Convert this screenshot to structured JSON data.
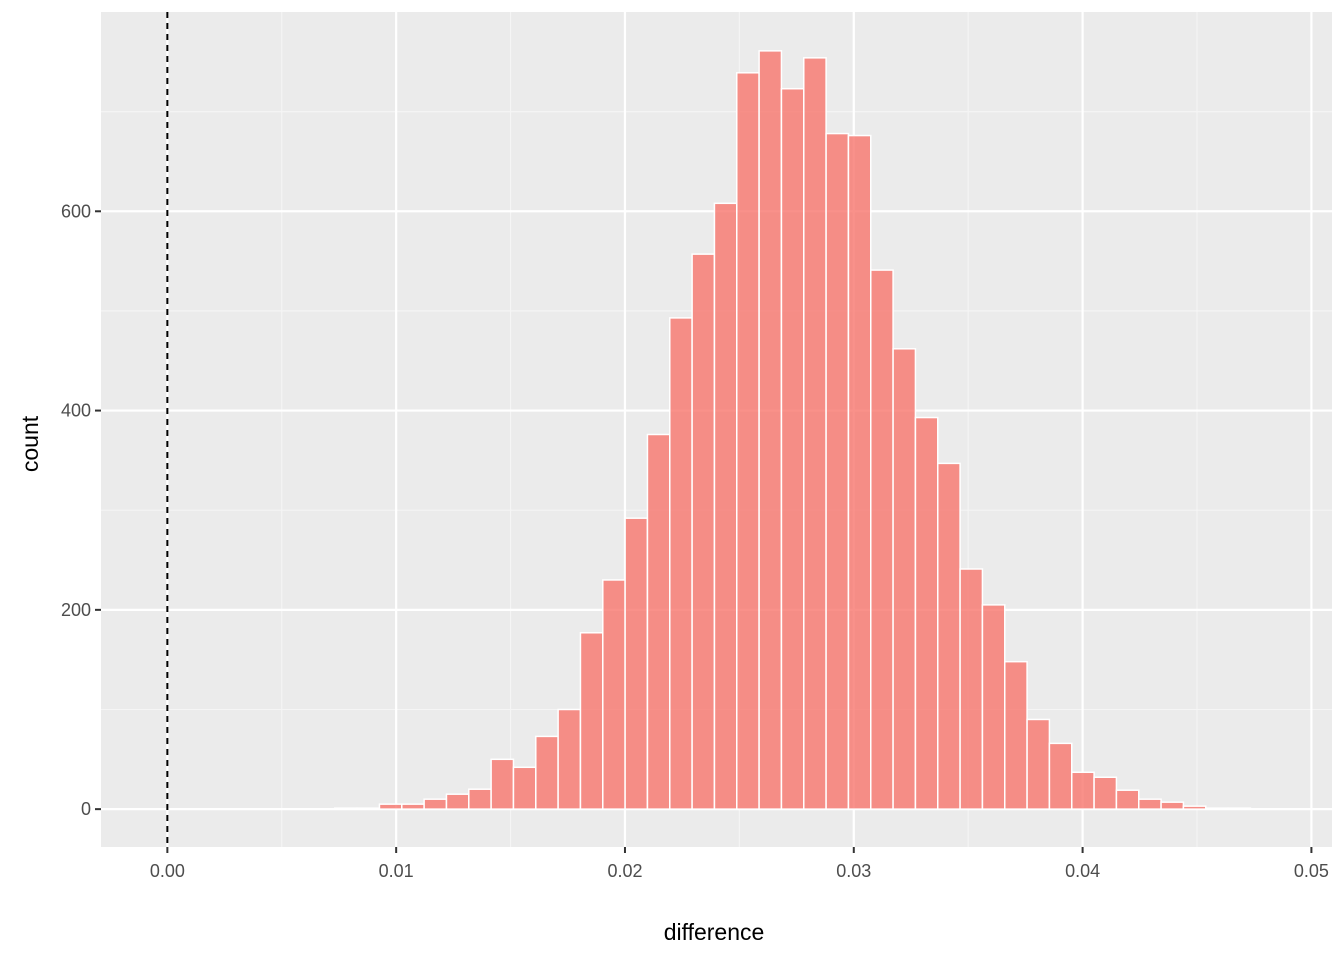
{
  "chart_data": {
    "type": "bar",
    "subtype": "histogram",
    "xlabel": "difference",
    "ylabel": "count",
    "title": "",
    "xlim": [
      -0.0029,
      0.0509
    ],
    "ylim": [
      -38,
      800
    ],
    "x_ticks": [
      {
        "value": 0.0,
        "label": "0.00"
      },
      {
        "value": 0.01,
        "label": "0.01"
      },
      {
        "value": 0.02,
        "label": "0.02"
      },
      {
        "value": 0.03,
        "label": "0.03"
      },
      {
        "value": 0.04,
        "label": "0.04"
      },
      {
        "value": 0.05,
        "label": "0.05"
      }
    ],
    "y_ticks": [
      {
        "value": 0,
        "label": "0"
      },
      {
        "value": 200,
        "label": "200"
      },
      {
        "value": 400,
        "label": "400"
      },
      {
        "value": 600,
        "label": "600"
      }
    ],
    "bin_width": 0.000976,
    "bin_start": -0.00049,
    "values": [
      0,
      0,
      0,
      0,
      0,
      0,
      0,
      0,
      1,
      1,
      5,
      5,
      10,
      15,
      20,
      50,
      42,
      73,
      100,
      177,
      230,
      292,
      376,
      493,
      557,
      608,
      739,
      761,
      723,
      754,
      678,
      676,
      541,
      462,
      393,
      347,
      241,
      205,
      148,
      90,
      66,
      37,
      32,
      19,
      10,
      7,
      3,
      1,
      1
    ],
    "reference_line": {
      "x": 0,
      "style": "dashed",
      "color": "#000000"
    },
    "grid": true,
    "colors": {
      "panel_background": "#ebebeb",
      "grid_major": "#ffffff",
      "grid_minor": "#f5f5f5",
      "bar_fill": "#f8766d",
      "bar_fill_opacity": 0.8,
      "bar_outline": "#ffffff"
    }
  }
}
